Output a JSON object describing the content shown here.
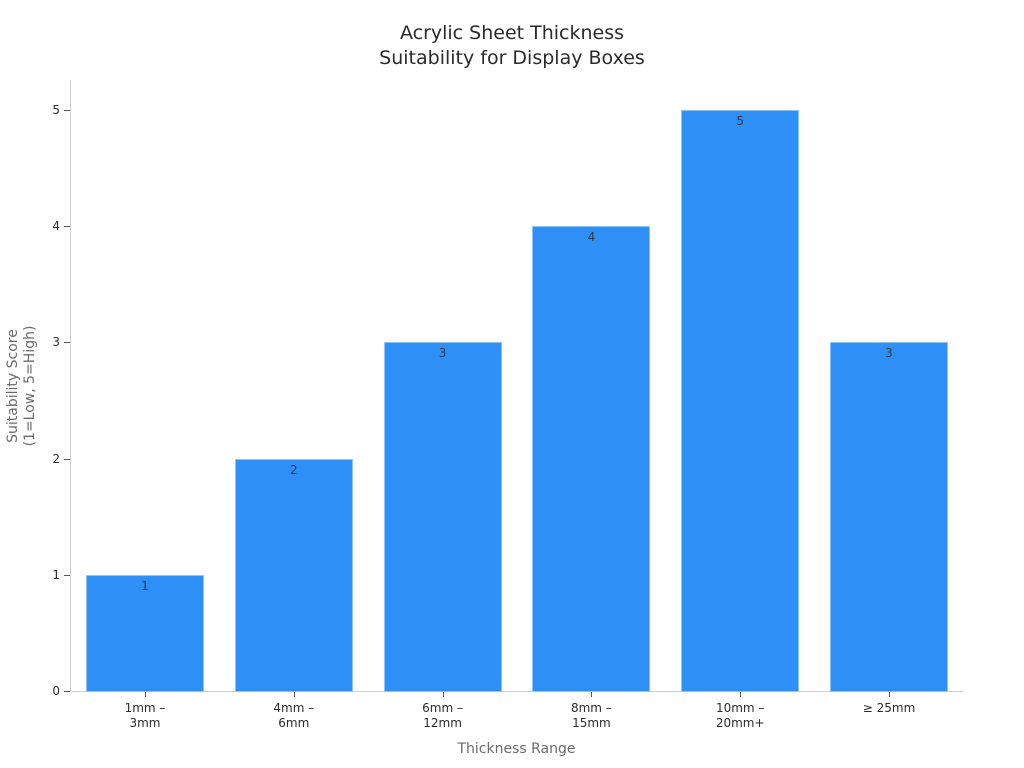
{
  "chart_data": {
    "type": "bar",
    "title": "Acrylic Sheet Thickness\nSuitability for Display Boxes",
    "title_lines": [
      "Acrylic Sheet Thickness",
      "Suitability for Display Boxes"
    ],
    "xlabel": "Thickness Range",
    "ylabel": "Suitability Score\n(1=Low, 5=High)",
    "ylabel_lines": [
      "Suitability Score",
      "(1=Low, 5=High)"
    ],
    "categories": [
      "1mm – 3mm",
      "4mm – 6mm",
      "6mm – 12mm",
      "8mm – 15mm",
      "10mm – 20mm+",
      "≥ 25mm"
    ],
    "category_labels_display": [
      "1mm –\n3mm",
      "4mm –\n6mm",
      "6mm –\n12mm",
      "8mm –\n15mm",
      "10mm –\n20mm+",
      "≥ 25mm"
    ],
    "values": [
      1,
      2,
      3,
      4,
      5,
      3
    ],
    "data_labels": [
      "1",
      "2",
      "3",
      "4",
      "5",
      "3"
    ],
    "ylim": [
      0,
      5.25
    ],
    "yticks": [
      0,
      1,
      2,
      3,
      4,
      5
    ],
    "ytick_labels": [
      "0",
      "1",
      "2",
      "3",
      "4",
      "5"
    ],
    "grid": false,
    "legend": null,
    "bar_color": "#2e90f7"
  }
}
